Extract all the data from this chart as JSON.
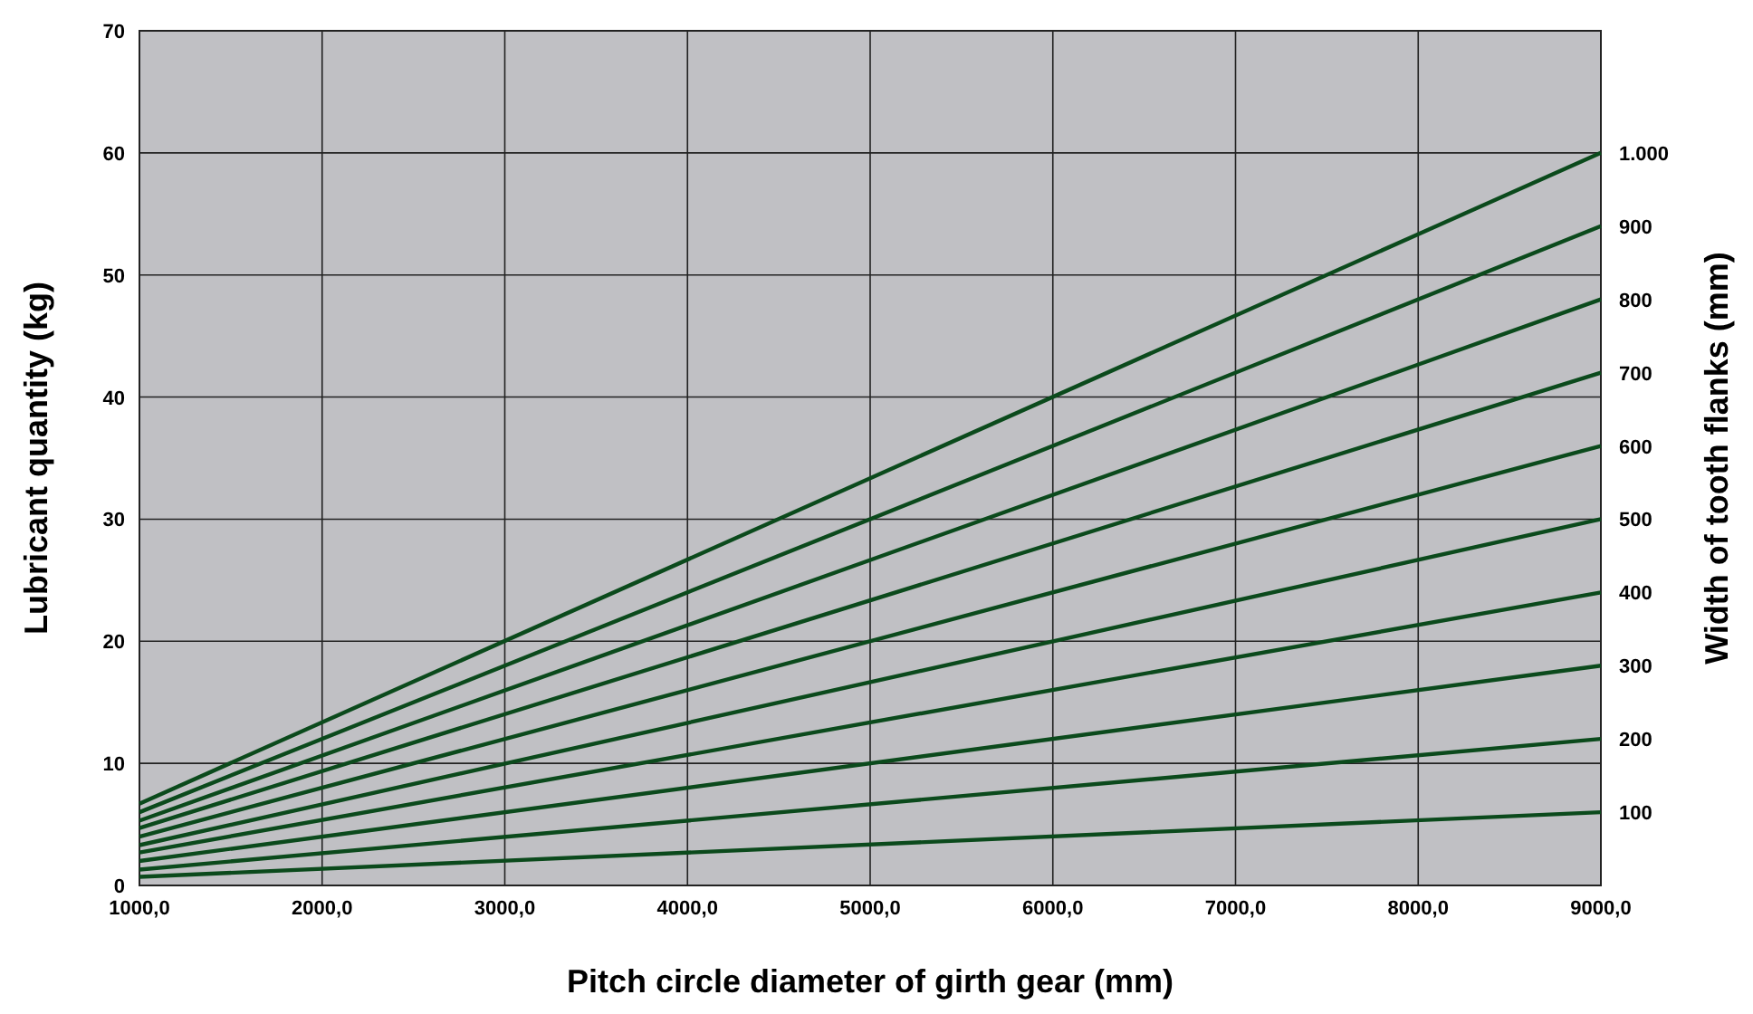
{
  "chart_data": {
    "type": "line",
    "xlabel": "Pitch circle diameter of girth gear (mm)",
    "ylabel": "Lubricant quantity (kg)",
    "y2label": "Width of tooth flanks (mm)",
    "xlim": [
      1000,
      9000
    ],
    "ylim": [
      0,
      70
    ],
    "xticks": [
      {
        "value": 1000,
        "label": "1000,0"
      },
      {
        "value": 2000,
        "label": "2000,0"
      },
      {
        "value": 3000,
        "label": "3000,0"
      },
      {
        "value": 4000,
        "label": "4000,0"
      },
      {
        "value": 5000,
        "label": "5000,0"
      },
      {
        "value": 6000,
        "label": "6000,0"
      },
      {
        "value": 7000,
        "label": "7000,0"
      },
      {
        "value": 8000,
        "label": "8000,0"
      },
      {
        "value": 9000,
        "label": "9000,0"
      }
    ],
    "yticks": [
      0,
      10,
      20,
      30,
      40,
      50,
      60,
      70
    ],
    "grid": true,
    "marker": "none",
    "line_style": "solid",
    "x": [
      1000,
      9000
    ],
    "series": [
      {
        "name": "100",
        "color": "#0b4a1c",
        "values": [
          0.7,
          6
        ]
      },
      {
        "name": "200",
        "color": "#0b4a1c",
        "values": [
          1.3,
          12
        ]
      },
      {
        "name": "300",
        "color": "#0b4a1c",
        "values": [
          2,
          18
        ]
      },
      {
        "name": "400",
        "color": "#0b4a1c",
        "values": [
          2.7,
          24
        ]
      },
      {
        "name": "500",
        "color": "#0b4a1c",
        "values": [
          3.3,
          30
        ]
      },
      {
        "name": "600",
        "color": "#0b4a1c",
        "values": [
          4,
          36
        ]
      },
      {
        "name": "700",
        "color": "#0b4a1c",
        "values": [
          4.7,
          42
        ]
      },
      {
        "name": "800",
        "color": "#0b4a1c",
        "values": [
          5.3,
          48
        ]
      },
      {
        "name": "900",
        "color": "#0b4a1c",
        "values": [
          6,
          54
        ]
      },
      {
        "name": "1.000",
        "color": "#0b4a1c",
        "values": [
          6.7,
          60
        ]
      }
    ]
  }
}
